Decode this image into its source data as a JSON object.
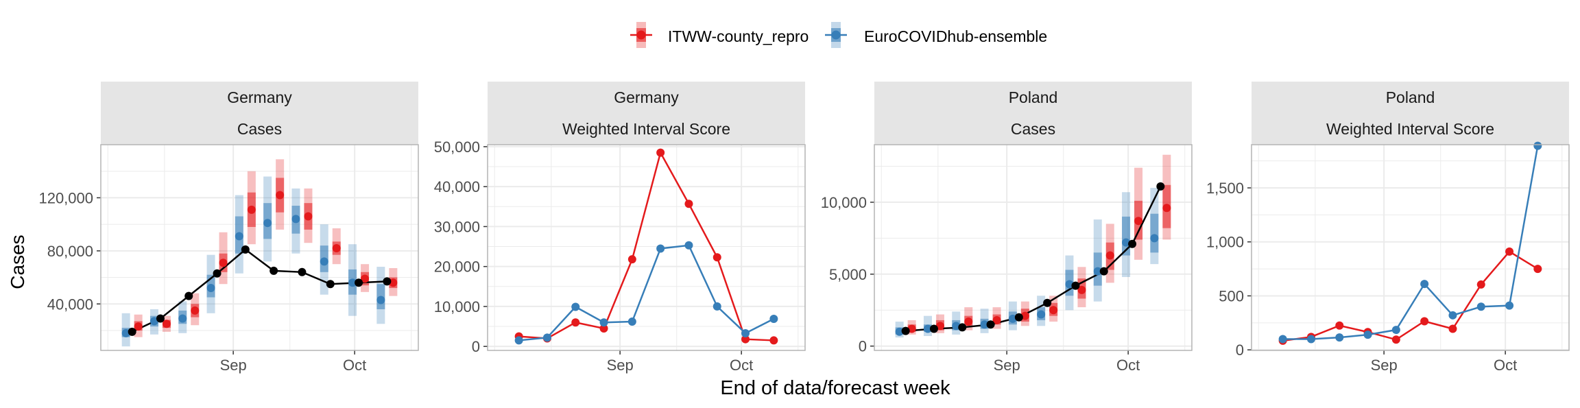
{
  "legend": {
    "items": [
      {
        "name": "ITWW-county_repro",
        "color": "#e41a1c"
      },
      {
        "name": "EuroCOVIDhub-ensemble",
        "color": "#377eb8"
      }
    ]
  },
  "axes": {
    "xlabel": "End of data/forecast week",
    "ylabel": "Cases"
  },
  "colors": {
    "observed": "#000000",
    "strip_bg": "#e5e5e5",
    "grid": "#ebebeb",
    "panel_border": "#b3b3b3"
  },
  "x_tick_labels": [
    "Sep",
    "Oct"
  ],
  "chart_data": [
    {
      "type": "line",
      "strip": [
        "Germany",
        "Cases"
      ],
      "x": [
        "2021-08-07",
        "2021-08-14",
        "2021-08-21",
        "2021-08-28",
        "2021-09-04",
        "2021-09-11",
        "2021-09-18",
        "2021-09-25",
        "2021-10-02",
        "2021-10-09"
      ],
      "ylim": [
        5000,
        160000
      ],
      "yticks": [
        40000,
        80000,
        120000
      ],
      "ytick_labels": [
        "40,000",
        "80,000",
        "120,000"
      ],
      "observed": [
        19000,
        29000,
        46000,
        63000,
        81000,
        65000,
        64000,
        55000,
        56000,
        57000
      ],
      "forecasts": [
        {
          "name": "ITWW-county_repro",
          "median": [
            23000,
            25000,
            35000,
            71000,
            111000,
            122000,
            106000,
            82000,
            59000,
            56000
          ],
          "inner": [
            [
              20000,
              27000
            ],
            [
              22000,
              28000
            ],
            [
              30000,
              40000
            ],
            [
              64000,
              78000
            ],
            [
              98000,
              124000
            ],
            [
              109000,
              135000
            ],
            [
              96000,
              116000
            ],
            [
              77000,
              87000
            ],
            [
              54000,
              64000
            ],
            [
              52000,
              60000
            ]
          ],
          "outer": [
            [
              15000,
              32000
            ],
            [
              19000,
              31000
            ],
            [
              24000,
              48000
            ],
            [
              55000,
              94000
            ],
            [
              85000,
              140000
            ],
            [
              96000,
              149000
            ],
            [
              86000,
              127000
            ],
            [
              70000,
              97000
            ],
            [
              49000,
              70000
            ],
            [
              46000,
              67000
            ]
          ]
        },
        {
          "name": "EuroCOVIDhub-ensemble",
          "median": [
            18000,
            27000,
            29000,
            52000,
            91000,
            101000,
            104000,
            72000,
            56000,
            43000
          ],
          "inner": [
            [
              15000,
              22000
            ],
            [
              23000,
              31000
            ],
            [
              25000,
              35000
            ],
            [
              45000,
              62000
            ],
            [
              78000,
              106000
            ],
            [
              89000,
              116000
            ],
            [
              93000,
              114000
            ],
            [
              64000,
              84000
            ],
            [
              47000,
              66000
            ],
            [
              36000,
              55000
            ]
          ],
          "outer": [
            [
              8000,
              33000
            ],
            [
              17000,
              36000
            ],
            [
              18000,
              42000
            ],
            [
              33000,
              77000
            ],
            [
              63000,
              122000
            ],
            [
              72000,
              136000
            ],
            [
              78000,
              127000
            ],
            [
              47000,
              100000
            ],
            [
              31000,
              85000
            ],
            [
              25000,
              68000
            ]
          ]
        }
      ]
    },
    {
      "type": "line",
      "strip": [
        "Germany",
        "Weighted Interval Score"
      ],
      "x": [
        "2021-08-07",
        "2021-08-14",
        "2021-08-21",
        "2021-08-28",
        "2021-09-04",
        "2021-09-11",
        "2021-09-18",
        "2021-09-25",
        "2021-10-02",
        "2021-10-09"
      ],
      "ylim": [
        -1000,
        50500
      ],
      "yticks": [
        0,
        10000,
        20000,
        30000,
        40000,
        50000
      ],
      "ytick_labels": [
        "0",
        "10,000",
        "20,000",
        "30,000",
        "40,000",
        "50,000"
      ],
      "series": [
        {
          "name": "ITWW-county_repro",
          "values": [
            2500,
            2000,
            6000,
            4500,
            21800,
            48500,
            35700,
            22300,
            1800,
            1500
          ]
        },
        {
          "name": "EuroCOVIDhub-ensemble",
          "values": [
            1500,
            2200,
            9900,
            6000,
            6200,
            24500,
            25300,
            10000,
            3300,
            6900
          ]
        }
      ]
    },
    {
      "type": "line",
      "strip": [
        "Poland",
        "Cases"
      ],
      "x": [
        "2021-08-07",
        "2021-08-14",
        "2021-08-21",
        "2021-08-28",
        "2021-09-04",
        "2021-09-11",
        "2021-09-18",
        "2021-09-25",
        "2021-10-02",
        "2021-10-09"
      ],
      "ylim": [
        -300,
        14000
      ],
      "yticks": [
        0,
        5000,
        10000
      ],
      "ytick_labels": [
        "0",
        "5,000",
        "10,000"
      ],
      "observed": [
        1050,
        1200,
        1300,
        1500,
        2000,
        3000,
        4200,
        5200,
        7100,
        11100
      ],
      "forecasts": [
        {
          "name": "ITWW-county_repro",
          "median": [
            1200,
            1400,
            1700,
            1800,
            2100,
            2500,
            3900,
            6300,
            8700,
            9600
          ],
          "inner": [
            [
              1000,
              1500
            ],
            [
              1100,
              1800
            ],
            [
              1400,
              2100
            ],
            [
              1500,
              2200
            ],
            [
              1700,
              2600
            ],
            [
              2100,
              3000
            ],
            [
              3300,
              4700
            ],
            [
              5300,
              7200
            ],
            [
              7400,
              10100
            ],
            [
              8200,
              11200
            ]
          ],
          "outer": [
            [
              800,
              1800
            ],
            [
              900,
              2200
            ],
            [
              1100,
              2700
            ],
            [
              1200,
              2700
            ],
            [
              1400,
              3100
            ],
            [
              1700,
              3500
            ],
            [
              2700,
              5500
            ],
            [
              4400,
              8500
            ],
            [
              6000,
              12400
            ],
            [
              7400,
              13300
            ]
          ]
        },
        {
          "name": "EuroCOVIDhub-ensemble",
          "median": [
            1000,
            1200,
            1400,
            1500,
            1900,
            2200,
            4300,
            5200,
            7200,
            7500
          ],
          "inner": [
            [
              800,
              1300
            ],
            [
              1000,
              1500
            ],
            [
              1100,
              1800
            ],
            [
              1200,
              1900
            ],
            [
              1500,
              2400
            ],
            [
              1800,
              2700
            ],
            [
              3500,
              5300
            ],
            [
              4200,
              6500
            ],
            [
              6300,
              9000
            ],
            [
              6500,
              9200
            ]
          ],
          "outer": [
            [
              600,
              1700
            ],
            [
              700,
              2100
            ],
            [
              800,
              2400
            ],
            [
              900,
              2600
            ],
            [
              1100,
              3100
            ],
            [
              1400,
              3500
            ],
            [
              2500,
              6300
            ],
            [
              3100,
              8800
            ],
            [
              4800,
              10700
            ],
            [
              5700,
              11000
            ]
          ]
        }
      ]
    },
    {
      "type": "line",
      "strip": [
        "Poland",
        "Weighted Interval Score"
      ],
      "x": [
        "2021-08-07",
        "2021-08-14",
        "2021-08-21",
        "2021-08-28",
        "2021-09-04",
        "2021-09-11",
        "2021-09-18",
        "2021-09-25",
        "2021-10-02",
        "2021-10-09"
      ],
      "ylim": [
        -5,
        1900
      ],
      "yticks": [
        0,
        500,
        1000,
        1500
      ],
      "ytick_labels": [
        "0",
        "500",
        "1,000",
        "1,500"
      ],
      "series": [
        {
          "name": "ITWW-county_repro",
          "values": [
            85,
            120,
            225,
            165,
            95,
            265,
            195,
            605,
            910,
            750
          ]
        },
        {
          "name": "EuroCOVIDhub-ensemble",
          "values": [
            100,
            100,
            115,
            140,
            185,
            610,
            320,
            400,
            410,
            1890
          ]
        }
      ]
    }
  ]
}
